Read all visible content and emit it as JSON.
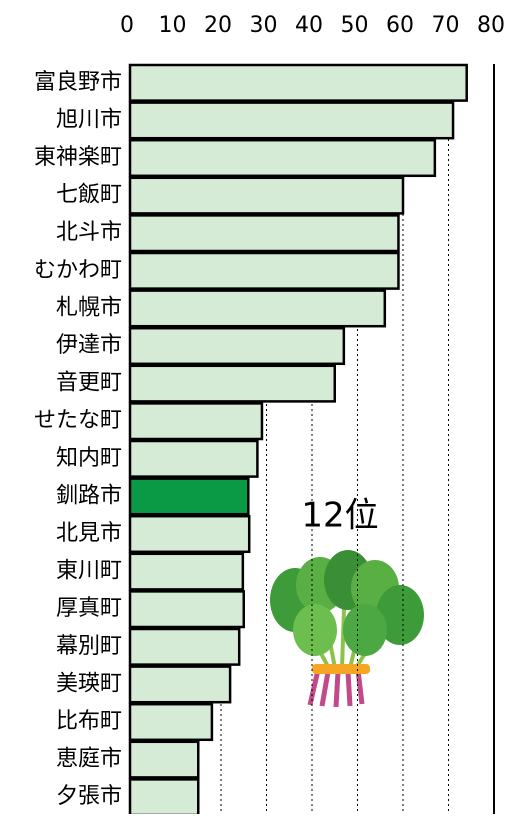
{
  "chart_data": {
    "type": "bar",
    "orientation": "horizontal",
    "categories": [
      "富良野市",
      "旭川市",
      "東神楽町",
      "七飯町",
      "北斗市",
      "むかわ町",
      "札幌市",
      "伊達市",
      "音更町",
      "せたな町",
      "知内町",
      "釧路市",
      "北見市",
      "東川町",
      "厚真町",
      "幕別町",
      "美瑛町",
      "比布町",
      "恵庭市",
      "夕張市"
    ],
    "values": [
      74,
      71,
      67,
      60,
      59,
      59,
      56,
      47,
      45,
      29,
      28,
      26,
      26.2,
      24.8,
      25,
      24,
      22,
      18,
      15,
      15
    ],
    "colors": [
      "#d5ebd5",
      "#d5ebd5",
      "#d5ebd5",
      "#d5ebd5",
      "#d5ebd5",
      "#d5ebd5",
      "#d5ebd5",
      "#d5ebd5",
      "#d5ebd5",
      "#d5ebd5",
      "#d5ebd5",
      "#0a9a46",
      "#d5ebd5",
      "#d5ebd5",
      "#d5ebd5",
      "#d5ebd5",
      "#d5ebd5",
      "#d5ebd5",
      "#d5ebd5",
      "#d5ebd5"
    ],
    "xlim": [
      0,
      80
    ],
    "xticks": [
      0,
      10,
      20,
      30,
      40,
      50,
      60,
      70,
      80
    ],
    "grid": true,
    "annotation": "12位"
  }
}
